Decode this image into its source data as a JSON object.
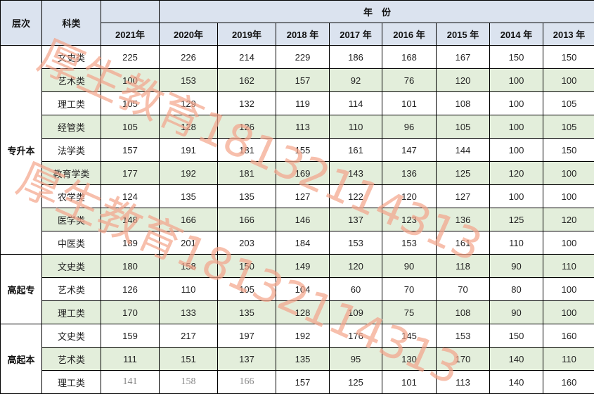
{
  "header": {
    "level_label": "层次",
    "category_label": "科类",
    "year_group_label": "年　份",
    "years": [
      "2021年",
      "2020年",
      "2019年",
      "2018 年",
      "2017 年",
      "2016 年",
      "2015 年",
      "2014 年",
      "2013 年"
    ]
  },
  "groups": [
    {
      "level": "专升本",
      "rows": [
        {
          "category": "文史类",
          "values": [
            225,
            226,
            214,
            229,
            186,
            168,
            167,
            150,
            150
          ]
        },
        {
          "category": "艺术类",
          "values": [
            100,
            153,
            162,
            157,
            92,
            76,
            120,
            100,
            100
          ]
        },
        {
          "category": "理工类",
          "values": [
            105,
            129,
            132,
            119,
            114,
            101,
            108,
            100,
            105
          ]
        },
        {
          "category": "经管类",
          "values": [
            105,
            128,
            126,
            113,
            110,
            96,
            105,
            100,
            105
          ]
        },
        {
          "category": "法学类",
          "values": [
            157,
            191,
            181,
            155,
            161,
            147,
            144,
            100,
            150
          ]
        },
        {
          "category": "教育学类",
          "values": [
            177,
            192,
            181,
            169,
            143,
            136,
            125,
            120,
            100
          ]
        },
        {
          "category": "农学类",
          "values": [
            124,
            135,
            135,
            127,
            122,
            120,
            127,
            100,
            100
          ]
        },
        {
          "category": "医学类",
          "values": [
            148,
            166,
            166,
            146,
            137,
            123,
            136,
            125,
            120
          ]
        },
        {
          "category": "中医类",
          "values": [
            189,
            201,
            203,
            184,
            153,
            153,
            161,
            110,
            100
          ]
        }
      ]
    },
    {
      "level": "高起专",
      "rows": [
        {
          "category": "文史类",
          "values": [
            180,
            158,
            150,
            149,
            120,
            90,
            118,
            90,
            110
          ]
        },
        {
          "category": "艺术类",
          "values": [
            126,
            110,
            105,
            104,
            60,
            70,
            70,
            80,
            100
          ]
        },
        {
          "category": "理工类",
          "values": [
            170,
            133,
            135,
            128,
            109,
            75,
            108,
            90,
            100
          ]
        }
      ]
    },
    {
      "level": "高起本",
      "rows": [
        {
          "category": "文史类",
          "values": [
            159,
            217,
            197,
            192,
            176,
            145,
            153,
            150,
            160
          ]
        },
        {
          "category": "艺术类",
          "values": [
            111,
            151,
            137,
            135,
            95,
            130,
            170,
            140,
            110
          ]
        },
        {
          "category": "理工类",
          "values": [
            141,
            158,
            166,
            157,
            125,
            101,
            113,
            140,
            160
          ],
          "gray_first": 3
        }
      ]
    }
  ],
  "colors": {
    "header_bg": "#dbe3ef",
    "stripe_bg": "#e3eedb",
    "watermark": "#f4a48a"
  },
  "watermark": {
    "text": "厚生教育18132114313"
  }
}
